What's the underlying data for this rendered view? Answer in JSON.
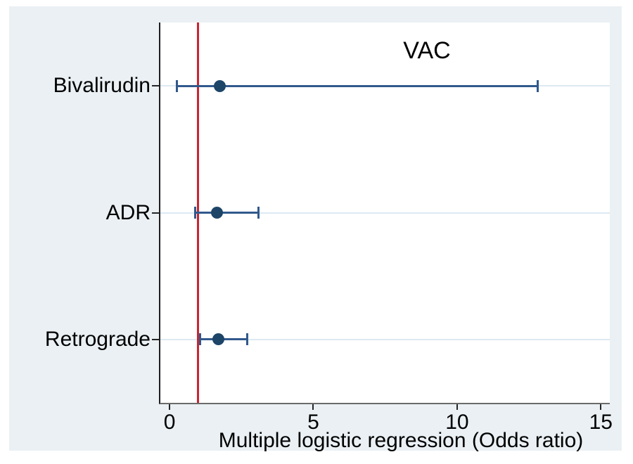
{
  "chart_data": {
    "type": "scatter",
    "subtype": "forest-plot",
    "title": "VAC",
    "xlabel": "Multiple logistic regression (Odds ratio)",
    "ylabel": "",
    "categories": [
      "Bivalirudin",
      "ADR",
      "Retrograde"
    ],
    "series": [
      {
        "name": "Bivalirudin",
        "odds_ratio": 1.75,
        "ci_low": 0.25,
        "ci_high": 12.8
      },
      {
        "name": "ADR",
        "odds_ratio": 1.65,
        "ci_low": 0.9,
        "ci_high": 3.1
      },
      {
        "name": "Retrograde",
        "odds_ratio": 1.7,
        "ci_low": 1.05,
        "ci_high": 2.7
      }
    ],
    "x_ticks": [
      0,
      5,
      10,
      15
    ],
    "x_tick_labels": [
      "0",
      "5",
      "10",
      "15"
    ],
    "xlim": [
      -0.32,
      15.31
    ],
    "reference_line_x": 1,
    "grid": "horizontal category gridlines only",
    "legend": "none",
    "colors": {
      "marker": "#1d4568",
      "ci_line": "#31598c",
      "reference_line": "#c92531",
      "gridline": "#dde9f1",
      "panel_background": "#eaf0f3",
      "plot_background": "#ffffff",
      "y_axis_line": "#1f1f1f",
      "x_axis_line": "#6b6b6b",
      "tick": "#262626",
      "text": "#000000"
    }
  }
}
